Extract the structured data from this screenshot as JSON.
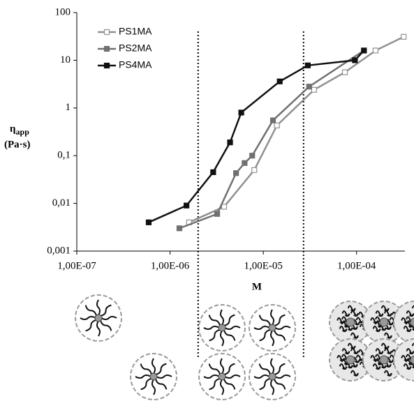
{
  "chart_data": {
    "type": "line",
    "xlabel": "M",
    "ylabel": "η",
    "ylabel_sub": "app",
    "ylabel_unit": "(Pa·s)",
    "log_x": true,
    "log_y": true,
    "xlim": [
      1e-07,
      0.00033
    ],
    "ylim": [
      0.001,
      100
    ],
    "xticks": [
      {
        "value": 1e-07,
        "label": "1,00E-07"
      },
      {
        "value": 1e-06,
        "label": "1,00E-06"
      },
      {
        "value": 1e-05,
        "label": "1,00E-05"
      },
      {
        "value": 0.0001,
        "label": "1,00E-04"
      }
    ],
    "yticks": [
      {
        "value": 0.001,
        "label": "0,001"
      },
      {
        "value": 0.01,
        "label": "0,01"
      },
      {
        "value": 0.1,
        "label": "0,1"
      },
      1,
      10,
      100
    ],
    "vlines": [
      2e-06,
      2.7e-05
    ],
    "legend": "top-left",
    "series": [
      {
        "name": "PS1MA",
        "color": "#909090",
        "marker_fill": "#ffffff",
        "x": [
          1.6e-06,
          3.8e-06,
          8e-06,
          1.4e-05,
          3.5e-05,
          7.5e-05,
          0.00016,
          0.00032
        ],
        "values": [
          0.004,
          0.0085,
          0.05,
          0.43,
          2.4,
          5.6,
          16,
          31
        ]
      },
      {
        "name": "PS2MA",
        "color": "#707070",
        "marker_fill": "#707070",
        "x": [
          1.26e-06,
          3.2e-06,
          5.1e-06,
          6.3e-06,
          7.6e-06,
          1.27e-05,
          3.1e-05,
          0.00012
        ],
        "values": [
          0.003,
          0.006,
          0.043,
          0.07,
          0.1,
          0.55,
          2.8,
          16
        ]
      },
      {
        "name": "PS4MA",
        "color": "#111111",
        "marker_fill": "#111111",
        "x": [
          5.9e-07,
          1.5e-06,
          2.9e-06,
          4.4e-06,
          5.8e-06,
          1.5e-05,
          3e-05,
          9.6e-05,
          0.00012
        ],
        "values": [
          0.004,
          0.009,
          0.045,
          0.19,
          0.8,
          3.6,
          7.8,
          10,
          16
        ]
      }
    ]
  }
}
